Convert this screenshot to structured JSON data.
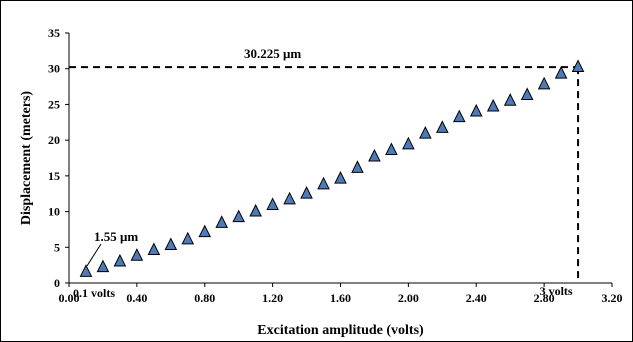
{
  "chart_data": {
    "type": "scatter",
    "xlabel": "Excitation amplitude (volts)",
    "ylabel": "Displacement (meters)",
    "xlim": [
      0,
      3.2
    ],
    "ylim": [
      0,
      35
    ],
    "x_ticks": [
      "0.00",
      "0.40",
      "0.80",
      "1.20",
      "1.60",
      "2.00",
      "2.40",
      "2.80",
      "3.20"
    ],
    "y_ticks": [
      "0",
      "5",
      "10",
      "15",
      "20",
      "25",
      "30",
      "35"
    ],
    "grid": false,
    "legend": "none",
    "marker": "triangle",
    "marker_color": "#4f7ab8",
    "series": [
      {
        "x": [
          0.1,
          0.2,
          0.3,
          0.4,
          0.5,
          0.6,
          0.7,
          0.8,
          0.9,
          1.0,
          1.1,
          1.2,
          1.3,
          1.4,
          1.5,
          1.6,
          1.7,
          1.8,
          1.9,
          2.0,
          2.1,
          2.2,
          2.3,
          2.4,
          2.5,
          2.6,
          2.7,
          2.8,
          2.9,
          3.0
        ],
        "y": [
          1.55,
          2.2,
          3.0,
          3.8,
          4.6,
          5.3,
          6.1,
          7.1,
          8.4,
          9.2,
          10.0,
          10.9,
          11.7,
          12.5,
          13.8,
          14.6,
          16.1,
          17.7,
          18.6,
          19.4,
          20.9,
          21.7,
          23.2,
          24.0,
          24.7,
          25.5,
          26.3,
          27.8,
          29.3,
          30.225
        ]
      }
    ],
    "annotations": {
      "top_value": "30.225 μm",
      "bottom_value": "1.55 μm",
      "start_label": "0.1 volts",
      "end_label": "3 volts"
    }
  }
}
